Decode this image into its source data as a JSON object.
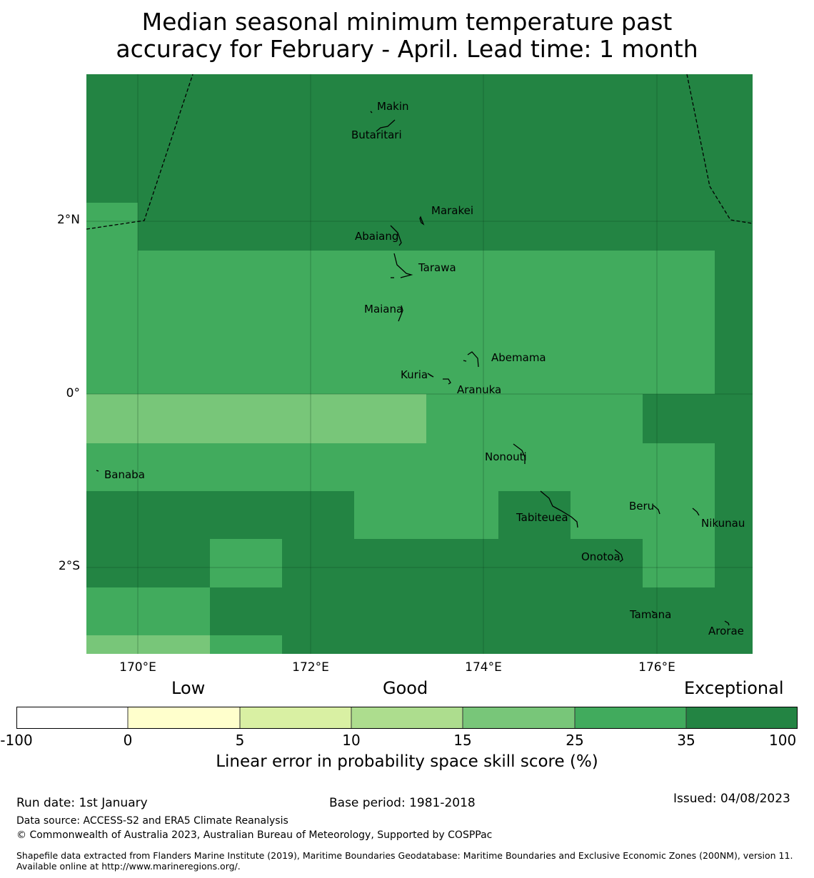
{
  "title": {
    "line1": "Median seasonal minimum temperature past",
    "line2": "accuracy for February - April. Lead time: 1 month"
  },
  "map": {
    "lon_range": [
      169.4,
      177.1
    ],
    "lat_range": [
      -2.99,
      3.7
    ],
    "lat_ticks": [
      "2°N",
      "0°",
      "2°S"
    ],
    "lon_ticks": [
      "170°E",
      "172°E",
      "174°E",
      "176°E"
    ],
    "skill_colors": {
      "25-35": "#41ab5d",
      "15-25": "#78c679",
      "35-100": "#238443"
    },
    "islands": [
      {
        "name": "Makin",
        "lon": 172.99,
        "lat": 3.38
      },
      {
        "name": "Butaritari",
        "lon": 172.79,
        "lat": 3.07
      },
      {
        "name": "Marakei",
        "lon": 173.33,
        "lat": 2.01
      },
      {
        "name": "Abaiang",
        "lon": 172.97,
        "lat": 1.86
      },
      {
        "name": "Tarawa",
        "lon": 173.02,
        "lat": 1.41
      },
      {
        "name": "Maiana",
        "lon": 173.0,
        "lat": 0.95
      },
      {
        "name": "Abemama",
        "lon": 173.87,
        "lat": 0.4
      },
      {
        "name": "Kuria",
        "lon": 173.4,
        "lat": 0.22
      },
      {
        "name": "Aranuka",
        "lon": 173.62,
        "lat": 0.16
      },
      {
        "name": "Nonouti",
        "lon": 174.42,
        "lat": -0.64
      },
      {
        "name": "Banaba",
        "lon": 169.53,
        "lat": -0.87
      },
      {
        "name": "Tabiteuea",
        "lon": 174.78,
        "lat": -1.25
      },
      {
        "name": "Beru",
        "lon": 175.98,
        "lat": -1.32
      },
      {
        "name": "Nikunau",
        "lon": 176.45,
        "lat": -1.36
      },
      {
        "name": "Onotoa",
        "lon": 175.57,
        "lat": -1.81
      },
      {
        "name": "Tamana",
        "lon": 175.98,
        "lat": -2.5
      },
      {
        "name": "Arorae",
        "lon": 176.82,
        "lat": -2.64
      }
    ]
  },
  "legend": {
    "categories": [
      "Low",
      "Good",
      "Exceptional"
    ],
    "bins": [
      {
        "from": -100,
        "to": 0,
        "color": "#ffffff"
      },
      {
        "from": 0,
        "to": 5,
        "color": "#ffffcc"
      },
      {
        "from": 5,
        "to": 10,
        "color": "#d9f0a3"
      },
      {
        "from": 10,
        "to": 15,
        "color": "#addd8e"
      },
      {
        "from": 15,
        "to": 25,
        "color": "#78c679"
      },
      {
        "from": 25,
        "to": 35,
        "color": "#41ab5d"
      },
      {
        "from": 35,
        "to": 100,
        "color": "#238443"
      }
    ],
    "ticks": [
      "-100",
      "0",
      "5",
      "10",
      "15",
      "25",
      "35",
      "100"
    ],
    "label": "Linear error in probability space skill score (%)"
  },
  "footer": {
    "run_date": "Run date: 1st January",
    "base_period": "Base period: 1981-2018",
    "issued": "Issued: 04/08/2023",
    "data_source": "Data source: ACCESS-S2 and ERA5 Climate Reanalysis",
    "copyright": "© Commonwealth of Australia 2023, Australian Bureau of Meteorology, Supported by COSPPac",
    "shapefile": "Shapefile data extracted from Flanders Marine Institute (2019), Maritime Boundaries Geodatabase: Maritime Boundaries and Exclusive Economic Zones (200NM), version 11. Available online at http://www.marineregions.org/."
  }
}
